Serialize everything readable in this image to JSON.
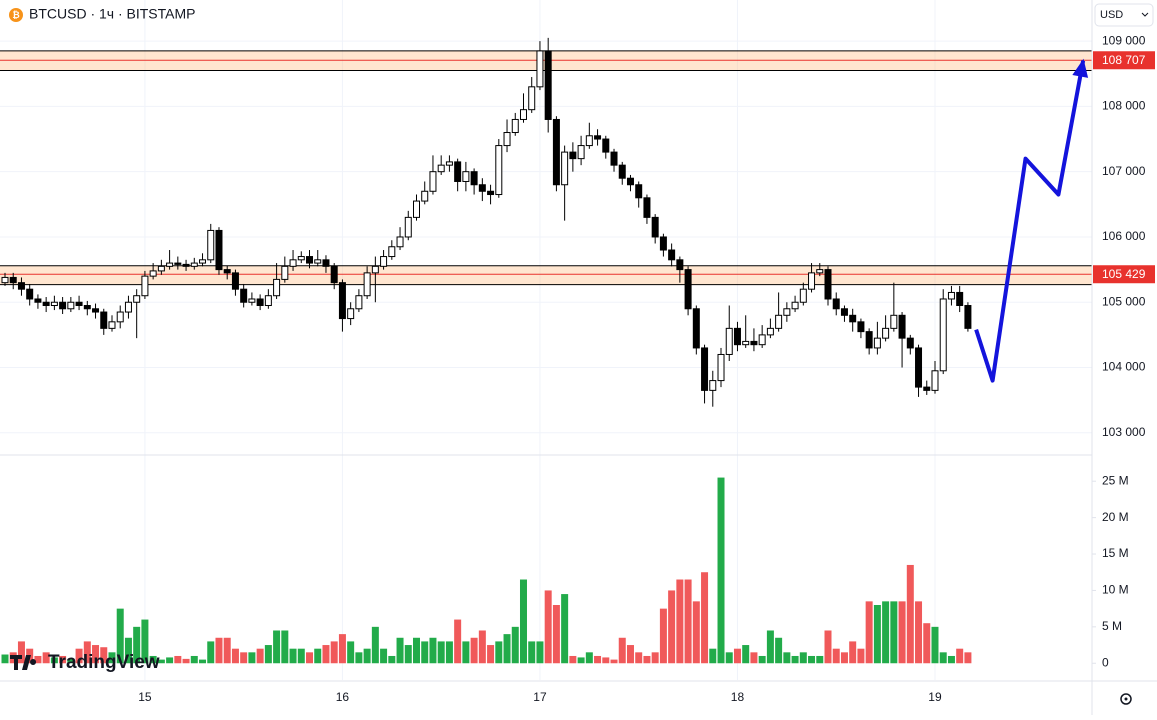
{
  "chart_data": {
    "type": "candlestick",
    "title": "BTCUSD · 1ч · BITSTAMP",
    "currency": "USD",
    "brand": "TradingView",
    "grid": true,
    "categories": [
      null,
      null,
      null,
      null,
      null,
      null,
      null,
      null,
      null,
      null,
      null,
      null,
      null,
      null,
      null,
      null,
      null,
      "15",
      null,
      null,
      null,
      null,
      null,
      null,
      null,
      null,
      null,
      null,
      null,
      null,
      null,
      null,
      null,
      null,
      null,
      null,
      null,
      null,
      null,
      null,
      null,
      "16",
      null,
      null,
      null,
      null,
      null,
      null,
      null,
      null,
      null,
      null,
      null,
      null,
      null,
      null,
      null,
      null,
      null,
      null,
      null,
      null,
      null,
      null,
      null,
      "17",
      null,
      null,
      null,
      null,
      null,
      null,
      null,
      null,
      null,
      null,
      null,
      null,
      null,
      null,
      null,
      null,
      null,
      null,
      null,
      null,
      null,
      null,
      null,
      "18",
      null,
      null,
      null,
      null,
      null,
      null,
      null,
      null,
      null,
      null,
      null,
      null,
      null,
      null,
      null,
      null,
      null,
      null,
      null,
      null,
      null,
      null,
      null,
      "19",
      null,
      null,
      null,
      null
    ],
    "series": {
      "open": [
        105300,
        105380,
        105300,
        105200,
        105050,
        105000,
        104950,
        105000,
        104900,
        105000,
        104950,
        104900,
        104850,
        104600,
        104700,
        104850,
        105000,
        105100,
        105400,
        105480,
        105550,
        105600,
        105580,
        105550,
        105600,
        105650,
        106100,
        105500,
        105450,
        105200,
        105000,
        105050,
        104950,
        105100,
        105350,
        105550,
        105650,
        105700,
        105600,
        105650,
        105550,
        105300,
        104750,
        104900,
        105100,
        105450,
        105550,
        105700,
        105850,
        106000,
        106300,
        106550,
        106700,
        107000,
        107100,
        107150,
        106850,
        107000,
        106800,
        106700,
        106650,
        107400,
        107600,
        107800,
        107950,
        108300,
        108850,
        107800,
        106800,
        107300,
        107200,
        107400,
        107550,
        107500,
        107300,
        107100,
        106900,
        106800,
        106600,
        106300,
        106000,
        105800,
        105650,
        105500,
        104900,
        104300,
        103650,
        103800,
        104200,
        104600,
        104350,
        104400,
        104350,
        104500,
        104600,
        104800,
        104900,
        105000,
        105200,
        105450,
        105500,
        105050,
        104900,
        104800,
        104700,
        104550,
        104300,
        104450,
        104600,
        104800,
        104450,
        104300,
        103700,
        103650,
        103950,
        105050,
        105150,
        104950
      ],
      "high": [
        105450,
        105450,
        105380,
        105280,
        105120,
        105080,
        105100,
        105080,
        105080,
        105100,
        105020,
        104980,
        104900,
        104800,
        104950,
        105100,
        105200,
        105480,
        105600,
        105650,
        105800,
        105700,
        105650,
        105680,
        105750,
        106200,
        106150,
        105560,
        105500,
        105280,
        105150,
        105120,
        105200,
        105600,
        105700,
        105800,
        105780,
        105800,
        105800,
        105720,
        105600,
        105350,
        105000,
        105200,
        105550,
        105700,
        105800,
        105950,
        106150,
        106400,
        106650,
        106850,
        107250,
        107250,
        107250,
        107200,
        107150,
        107050,
        106900,
        106800,
        107500,
        107800,
        107900,
        108200,
        108450,
        109000,
        109050,
        107850,
        107400,
        107450,
        107550,
        107750,
        107650,
        107550,
        107350,
        107150,
        106950,
        106850,
        106650,
        106350,
        106050,
        105900,
        105700,
        105550,
        104950,
        104350,
        103950,
        104300,
        104950,
        104700,
        104800,
        104600,
        104650,
        104750,
        105150,
        105000,
        105100,
        105300,
        105600,
        105600,
        105550,
        105150,
        104950,
        104900,
        104750,
        104600,
        104700,
        104800,
        105300,
        104850,
        104500,
        104350,
        103800,
        104100,
        105200,
        105250,
        105250,
        105000
      ],
      "low": [
        105250,
        105200,
        105100,
        104950,
        104900,
        104850,
        104880,
        104820,
        104850,
        104880,
        104800,
        104750,
        104500,
        104550,
        104600,
        104750,
        104450,
        105050,
        105350,
        105420,
        105500,
        105500,
        105480,
        105500,
        105550,
        105600,
        105420,
        105350,
        105100,
        104920,
        104950,
        104880,
        104900,
        105050,
        105300,
        105480,
        105600,
        105520,
        105550,
        105450,
        105200,
        104550,
        104650,
        104850,
        105050,
        105000,
        105500,
        105650,
        105800,
        105950,
        106250,
        106500,
        106650,
        106950,
        107000,
        106700,
        106700,
        106650,
        106550,
        106500,
        106600,
        107300,
        107550,
        107750,
        107900,
        108250,
        107600,
        106700,
        106250,
        107000,
        107100,
        107350,
        107400,
        107200,
        107000,
        106800,
        106700,
        106450,
        106200,
        105900,
        105700,
        105550,
        105300,
        104800,
        104200,
        103450,
        103400,
        103700,
        104100,
        104250,
        104300,
        104250,
        104300,
        104450,
        104550,
        104700,
        104850,
        104950,
        105150,
        105400,
        104950,
        104800,
        104700,
        104550,
        104450,
        104200,
        104200,
        104400,
        104550,
        104000,
        104200,
        103550,
        103580,
        103600,
        103900,
        104950,
        104850,
        104550
      ],
      "close": [
        105380,
        105300,
        105200,
        105050,
        105000,
        104950,
        105000,
        104900,
        105000,
        104950,
        104900,
        104850,
        104600,
        104700,
        104850,
        105000,
        105100,
        105400,
        105480,
        105550,
        105600,
        105580,
        105550,
        105600,
        105650,
        106100,
        105500,
        105450,
        105200,
        105000,
        105050,
        104950,
        105100,
        105350,
        105550,
        105650,
        105700,
        105600,
        105650,
        105550,
        105300,
        104750,
        104900,
        105100,
        105450,
        105550,
        105700,
        105850,
        106000,
        106300,
        106550,
        106700,
        107000,
        107100,
        107150,
        106850,
        107000,
        106800,
        106700,
        106650,
        107400,
        107600,
        107800,
        107950,
        108300,
        108850,
        107800,
        106800,
        107300,
        107200,
        107400,
        107550,
        107500,
        107300,
        107100,
        106900,
        106800,
        106600,
        106300,
        106000,
        105800,
        105650,
        105500,
        104900,
        104300,
        103650,
        103800,
        104200,
        104600,
        104350,
        104400,
        104350,
        104500,
        104600,
        104800,
        104900,
        105000,
        105200,
        105450,
        105500,
        105050,
        104900,
        104800,
        104700,
        104550,
        104300,
        104450,
        104600,
        104800,
        104450,
        104300,
        103700,
        103650,
        103950,
        105050,
        105150,
        104950,
        104600
      ]
    },
    "up_color": "#ffffff",
    "down_color": "#000000",
    "ylim": [
      102660,
      109630
    ],
    "yticks": [
      {
        "value": 103000,
        "label": "103 000"
      },
      {
        "value": 104000,
        "label": "104 000"
      },
      {
        "value": 105000,
        "label": "105 000"
      },
      {
        "value": 106000,
        "label": "106 000"
      },
      {
        "value": 107000,
        "label": "107 000"
      },
      {
        "value": 108000,
        "label": "108 000"
      },
      {
        "value": 109000,
        "label": "109 000"
      }
    ],
    "volume": {
      "values": [
        1.2,
        1.5,
        3,
        2,
        1,
        1.5,
        0.8,
        1,
        0.6,
        2,
        3,
        2.5,
        2.2,
        1.5,
        7.5,
        3.5,
        5,
        6,
        1,
        0.5,
        0.8,
        1,
        0.6,
        1,
        0.5,
        3,
        3.5,
        3.5,
        2,
        1.5,
        1.5,
        2,
        2.5,
        4.5,
        4.5,
        2,
        2,
        1.5,
        2,
        2.5,
        3,
        4,
        3,
        1.5,
        2,
        5,
        2,
        1,
        3.5,
        2.5,
        3.5,
        3,
        3.5,
        3,
        3,
        6,
        3,
        3.5,
        4.5,
        2.5,
        3,
        4,
        5,
        11.5,
        3,
        3,
        10,
        8,
        9.5,
        1,
        0.8,
        1.5,
        1,
        0.8,
        0.5,
        3.5,
        2.5,
        1.5,
        1,
        1.5,
        7.5,
        10,
        11.5,
        11.5,
        8.5,
        12.5,
        2,
        25.5,
        1.5,
        2,
        2.5,
        1.5,
        1,
        4.5,
        3.5,
        1.5,
        1,
        1.5,
        1,
        1,
        4.5,
        2,
        1.5,
        3,
        2,
        8.5,
        8,
        8.5,
        8.5,
        8.5,
        13.5,
        8.5,
        5.5,
        5,
        1.5,
        1,
        2,
        1.5
      ],
      "up_color": "#22ab4a",
      "down_color": "#f0595a",
      "ylim": [
        -2.3,
        28.6
      ],
      "yticks": [
        0,
        {
          "value": 5,
          "label": "5 M"
        },
        {
          "value": 10,
          "label": "10 M"
        },
        {
          "value": 15,
          "label": "15 M"
        },
        {
          "value": 20,
          "label": "20 M"
        },
        {
          "value": 25,
          "label": "25 M"
        }
      ]
    },
    "levels": [
      {
        "value": 108707,
        "label": "108 707",
        "band": [
          108550,
          108850
        ],
        "color": "#e8322d"
      },
      {
        "value": 105429,
        "label": "105 429",
        "band": [
          105270,
          105560
        ],
        "color": "#e8322d"
      }
    ],
    "projection": {
      "x": [
        118,
        120,
        124,
        128,
        131
      ],
      "y": [
        104580,
        103800,
        107200,
        106650,
        108700
      ],
      "color": "#1414dc"
    }
  }
}
